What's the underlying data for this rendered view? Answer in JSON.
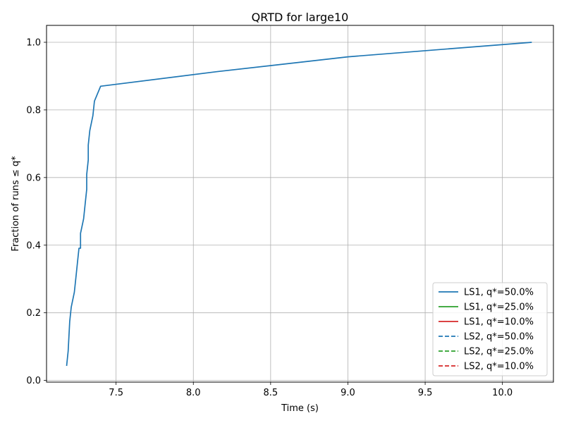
{
  "chart_data": {
    "type": "line",
    "title": "QRTD for large10",
    "xlabel": "Time (s)",
    "ylabel": "Fraction of runs ≤ q*",
    "xlim": [
      7.05,
      10.33
    ],
    "ylim": [
      -0.005,
      1.05
    ],
    "xticks": [
      7.5,
      8.0,
      8.5,
      9.0,
      9.5,
      10.0
    ],
    "xtick_labels": [
      "7.5",
      "8.0",
      "8.5",
      "9.0",
      "9.5",
      "10.0"
    ],
    "yticks": [
      0.0,
      0.2,
      0.4,
      0.6,
      0.8,
      1.0
    ],
    "ytick_labels": [
      "0.0",
      "0.2",
      "0.4",
      "0.6",
      "0.8",
      "1.0"
    ],
    "grid": true,
    "legend_position": "bottom-right",
    "series": [
      {
        "name": "LS1, q*=50.0%",
        "color": "#1f77b4",
        "dash": "solid",
        "x": [
          7.18,
          7.19,
          7.2,
          7.21,
          7.23,
          7.24,
          7.25,
          7.26,
          7.27,
          7.27,
          7.29,
          7.3,
          7.31,
          7.31,
          7.32,
          7.32,
          7.33,
          7.35,
          7.36,
          7.4,
          8.15,
          9.0,
          10.19
        ],
        "y": [
          0.043,
          0.087,
          0.174,
          0.217,
          0.261,
          0.304,
          0.348,
          0.391,
          0.391,
          0.435,
          0.478,
          0.522,
          0.565,
          0.609,
          0.652,
          0.696,
          0.739,
          0.783,
          0.826,
          0.87,
          0.913,
          0.957,
          1.0
        ]
      },
      {
        "name": "LS1, q*=25.0%",
        "color": "#2ca02c",
        "dash": "solid",
        "x": [],
        "y": []
      },
      {
        "name": "LS1, q*=10.0%",
        "color": "#d62728",
        "dash": "solid",
        "x": [],
        "y": []
      },
      {
        "name": "LS2, q*=50.0%",
        "color": "#1f77b4",
        "dash": "dashed",
        "x": [],
        "y": []
      },
      {
        "name": "LS2, q*=25.0%",
        "color": "#2ca02c",
        "dash": "dashed",
        "x": [],
        "y": []
      },
      {
        "name": "LS2, q*=10.0%",
        "color": "#d62728",
        "dash": "dashed",
        "x": [],
        "y": []
      }
    ]
  }
}
